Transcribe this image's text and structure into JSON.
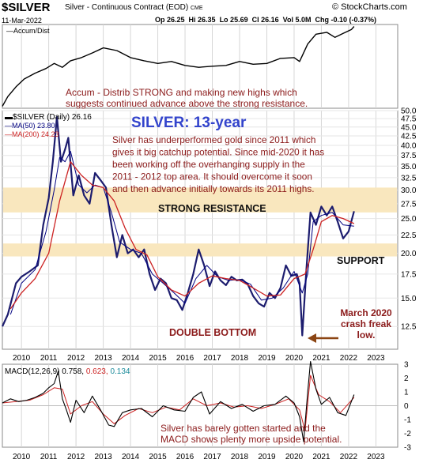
{
  "header": {
    "symbol": "$SILVER",
    "instrument": "Silver - Continuous Contract (EOD)",
    "exchange": "CME",
    "date": "11-Mar-2022",
    "open": "Op 26.25",
    "high": "Hi 26.35",
    "low": "Lo 25.69",
    "close": "Cl 26.16",
    "volume": "Vol 5.0M",
    "change": "Chg -0.10 (-0.37%)",
    "brand": "© StockCharts.com"
  },
  "colors": {
    "price": "#1c1c6e",
    "ma50": "#000080",
    "ma200": "#cc2222",
    "annotation": "#8b1a1a",
    "title": "#3344cc",
    "zone": "#f9e7be",
    "macd": "#000000",
    "signal": "#cc2222",
    "histogram": "#1a8a9a"
  },
  "chart_data": [
    {
      "type": "line",
      "panel": "indicator-top",
      "legend": "Accum/Dist",
      "x_range": [
        2009.3,
        2023.8
      ],
      "y_range": [
        -1.1,
        1.05
      ],
      "series": [
        {
          "name": "Accum/Dist",
          "color": "#000000",
          "x": [
            2009.3,
            2009.5,
            2009.8,
            2010.1,
            2010.5,
            2010.9,
            2011.2,
            2011.5,
            2011.8,
            2012.2,
            2012.6,
            2013.0,
            2013.5,
            2014.0,
            2014.5,
            2015.0,
            2015.5,
            2016.0,
            2016.5,
            2017.0,
            2017.5,
            2018.0,
            2018.5,
            2019.0,
            2019.5,
            2020.0,
            2020.2,
            2020.5,
            2020.8,
            2021.2,
            2021.5,
            2021.8,
            2022.1,
            2022.2
          ],
          "y": [
            -1.05,
            -0.8,
            -0.55,
            -0.35,
            -0.2,
            -0.08,
            0.05,
            -0.05,
            0.12,
            0.2,
            0.32,
            0.45,
            0.38,
            0.2,
            0.12,
            0.05,
            0.1,
            0.0,
            -0.05,
            -0.02,
            0.0,
            0.1,
            0.03,
            0.05,
            0.18,
            0.2,
            0.1,
            0.55,
            0.8,
            0.85,
            0.72,
            0.82,
            0.92,
            1.0
          ]
        }
      ],
      "annotation": "Accum - Distrib STRONG  and making new highs which suggests continued advance above the strong resistance."
    },
    {
      "type": "line",
      "panel": "price",
      "title": "SILVER: 13-year",
      "legend": [
        "$SILVER (Daily) 26.16",
        "MA(50) 23.80",
        "MA(200) 24.23"
      ],
      "x_range": [
        2009.3,
        2023.8
      ],
      "y_scale": "log",
      "ylim": [
        10.8,
        50
      ],
      "x_ticks": [
        "2010",
        "2011",
        "2012",
        "2013",
        "2014",
        "2015",
        "2016",
        "2017",
        "2018",
        "2019",
        "2020",
        "2021",
        "2022",
        "2023"
      ],
      "y_ticks": [
        50.0,
        47.5,
        45.0,
        42.5,
        40.0,
        37.5,
        35.0,
        32.5,
        30.0,
        27.5,
        25.0,
        22.5,
        20.0,
        17.5,
        15.0,
        12.5
      ],
      "zones": [
        {
          "label": "STRONG RESISTANCE",
          "from": 26.0,
          "to": 30.5
        },
        {
          "label": "SUPPORT",
          "from": 19.6,
          "to": 21.3
        }
      ],
      "series": [
        {
          "name": "$SILVER (Daily)",
          "color": "#1c1c6e",
          "x": [
            2009.3,
            2009.5,
            2009.8,
            2010.0,
            2010.3,
            2010.6,
            2010.8,
            2011.0,
            2011.15,
            2011.3,
            2011.45,
            2011.6,
            2011.72,
            2011.9,
            2012.1,
            2012.3,
            2012.5,
            2012.7,
            2012.9,
            2013.1,
            2013.3,
            2013.5,
            2013.7,
            2013.9,
            2014.1,
            2014.3,
            2014.5,
            2014.7,
            2014.9,
            2015.1,
            2015.3,
            2015.5,
            2015.7,
            2015.9,
            2016.1,
            2016.3,
            2016.5,
            2016.7,
            2016.9,
            2017.1,
            2017.3,
            2017.5,
            2017.7,
            2017.9,
            2018.1,
            2018.3,
            2018.5,
            2018.7,
            2018.9,
            2019.1,
            2019.3,
            2019.5,
            2019.7,
            2019.9,
            2020.1,
            2020.2,
            2020.3,
            2020.45,
            2020.6,
            2020.8,
            2021.0,
            2021.2,
            2021.4,
            2021.6,
            2021.8,
            2022.0,
            2022.2
          ],
          "y": [
            12.5,
            13.5,
            16.5,
            17.2,
            17.8,
            18.5,
            24.0,
            28.5,
            36.0,
            48.0,
            36.0,
            39.0,
            42.0,
            29.0,
            33.0,
            29.0,
            27.5,
            33.5,
            32.0,
            30.5,
            24.0,
            19.5,
            22.5,
            20.0,
            20.5,
            19.5,
            20.5,
            17.5,
            15.8,
            17.0,
            16.5,
            15.0,
            14.8,
            13.9,
            15.5,
            17.5,
            20.5,
            18.5,
            16.2,
            17.8,
            16.8,
            16.3,
            17.2,
            16.8,
            16.9,
            16.4,
            15.2,
            14.5,
            14.2,
            15.5,
            15.0,
            16.0,
            18.5,
            17.3,
            17.5,
            16.5,
            11.8,
            18.0,
            26.0,
            24.0,
            27.0,
            25.5,
            27.0,
            24.5,
            22.0,
            23.0,
            26.2
          ]
        },
        {
          "name": "MA(50)",
          "color": "#000080",
          "x": [
            2009.6,
            2010.0,
            2010.5,
            2010.9,
            2011.2,
            2011.4,
            2011.6,
            2011.8,
            2012.1,
            2012.4,
            2012.7,
            2013.0,
            2013.3,
            2013.6,
            2014.0,
            2014.4,
            2014.8,
            2015.2,
            2015.6,
            2016.0,
            2016.4,
            2016.8,
            2017.2,
            2017.6,
            2018.0,
            2018.4,
            2018.8,
            2019.2,
            2019.6,
            2020.0,
            2020.3,
            2020.5,
            2020.7,
            2021.0,
            2021.4,
            2021.8,
            2022.2
          ],
          "y": [
            13.5,
            16.5,
            18.0,
            23.0,
            30.0,
            37.0,
            36.0,
            38.5,
            31.0,
            29.5,
            31.0,
            30.5,
            26.0,
            21.5,
            20.5,
            20.0,
            17.5,
            16.5,
            15.5,
            14.5,
            17.0,
            18.5,
            17.2,
            16.8,
            16.9,
            16.4,
            14.8,
            15.0,
            16.0,
            17.8,
            15.5,
            17.5,
            24.5,
            25.5,
            26.0,
            24.0,
            23.8
          ]
        },
        {
          "name": "MA(200)",
          "color": "#cc2222",
          "x": [
            2009.6,
            2010.0,
            2010.5,
            2011.0,
            2011.4,
            2011.8,
            2012.2,
            2012.6,
            2013.0,
            2013.4,
            2013.8,
            2014.2,
            2014.6,
            2015.0,
            2015.5,
            2016.0,
            2016.5,
            2017.0,
            2017.5,
            2018.0,
            2018.5,
            2019.0,
            2019.5,
            2020.0,
            2020.4,
            2020.7,
            2021.0,
            2021.4,
            2021.8,
            2022.2
          ],
          "y": [
            14.0,
            15.5,
            17.0,
            20.0,
            28.0,
            36.0,
            33.0,
            31.0,
            30.5,
            28.0,
            23.5,
            20.5,
            19.8,
            17.2,
            15.8,
            15.2,
            16.5,
            17.3,
            17.0,
            16.8,
            16.0,
            15.2,
            15.3,
            17.0,
            17.5,
            20.5,
            24.5,
            25.5,
            25.0,
            24.2
          ]
        }
      ],
      "annotations": [
        "Silver has underperformed gold since 2011 which gives it big catchup potential. Since mid-2020 it has been working off the overhanging supply in the 2011 - 2012 top area. It should overcome it soon and then advance initially towards its 2011 highs.",
        "DOUBLE BOTTOM",
        "March 2020 crash freak low."
      ]
    },
    {
      "type": "line",
      "panel": "macd",
      "legend": {
        "label": "MACD(12,26,9)",
        "macd": "0.758",
        "signal": "0.623",
        "histogram": "0.134"
      },
      "x_range": [
        2009.3,
        2023.8
      ],
      "ylim": [
        -3,
        3
      ],
      "y_ticks": [
        3,
        2,
        1,
        0,
        -1,
        -2,
        -3
      ],
      "x_ticks": [
        "2010",
        "2011",
        "2012",
        "2013",
        "2014",
        "2015",
        "2016",
        "2017",
        "2018",
        "2019",
        "2020",
        "2021",
        "2022",
        "2023"
      ],
      "series": [
        {
          "name": "MACD",
          "color": "#000000",
          "x": [
            2009.3,
            2009.6,
            2009.9,
            2010.2,
            2010.5,
            2010.8,
            2011.0,
            2011.2,
            2011.35,
            2011.5,
            2011.65,
            2011.8,
            2012.0,
            2012.3,
            2012.6,
            2012.9,
            2013.2,
            2013.4,
            2013.7,
            2014.0,
            2014.4,
            2014.8,
            2015.2,
            2015.6,
            2016.0,
            2016.3,
            2016.6,
            2016.9,
            2017.3,
            2017.7,
            2018.1,
            2018.5,
            2018.9,
            2019.3,
            2019.7,
            2020.0,
            2020.2,
            2020.35,
            2020.5,
            2020.6,
            2020.8,
            2021.0,
            2021.3,
            2021.6,
            2021.9,
            2022.2
          ],
          "y": [
            0.2,
            0.5,
            0.3,
            0.4,
            0.6,
            0.9,
            1.3,
            1.6,
            2.5,
            0.5,
            -0.3,
            -1.2,
            0.4,
            -0.5,
            0.7,
            -0.3,
            -1.4,
            -1.5,
            -0.5,
            -0.3,
            -0.2,
            -0.8,
            0.0,
            -0.3,
            -0.4,
            0.6,
            1.0,
            -0.6,
            0.3,
            -0.2,
            0.1,
            -0.4,
            0.0,
            0.1,
            0.7,
            0.2,
            -0.8,
            -2.6,
            1.0,
            3.2,
            1.2,
            0.1,
            0.6,
            -0.5,
            -0.7,
            0.8
          ]
        },
        {
          "name": "Signal",
          "color": "#cc2222",
          "x": [
            2009.3,
            2009.8,
            2010.3,
            2010.8,
            2011.2,
            2011.5,
            2011.8,
            2012.2,
            2012.6,
            2013.0,
            2013.4,
            2013.8,
            2014.3,
            2014.8,
            2015.3,
            2015.8,
            2016.3,
            2016.8,
            2017.3,
            2017.8,
            2018.3,
            2018.8,
            2019.3,
            2019.8,
            2020.2,
            2020.4,
            2020.6,
            2020.9,
            2021.3,
            2021.7,
            2022.2
          ],
          "y": [
            0.2,
            0.3,
            0.4,
            0.8,
            1.3,
            1.2,
            -0.6,
            0.0,
            0.3,
            -0.6,
            -1.3,
            -0.7,
            -0.2,
            -0.5,
            -0.1,
            -0.3,
            0.5,
            0.0,
            0.2,
            -0.1,
            0.0,
            -0.2,
            0.1,
            0.5,
            -0.3,
            -1.8,
            2.2,
            0.8,
            0.3,
            -0.5,
            0.6
          ]
        }
      ],
      "annotation": "Silver has barely gotten started and the MACD shows plenty more upside potential."
    }
  ]
}
